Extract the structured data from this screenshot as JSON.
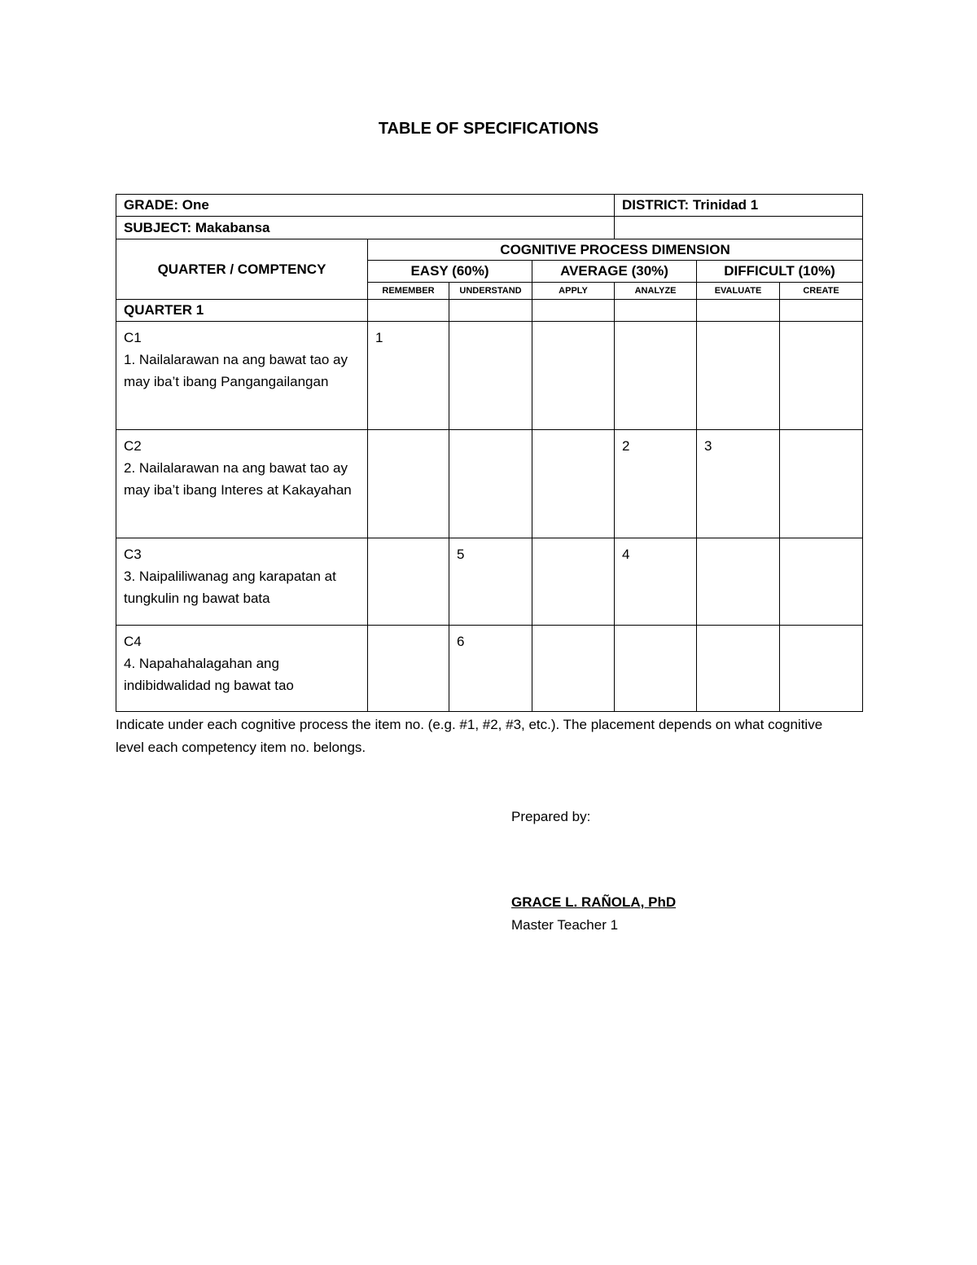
{
  "title": "TABLE OF SPECIFICATIONS",
  "header": {
    "grade": "GRADE: One",
    "district": "DISTRICT: Trinidad 1",
    "subject": "SUBJECT: Makabansa"
  },
  "table": {
    "competency_header": "QUARTER / COMPTENCY",
    "dimension_header": "COGNITIVE PROCESS DIMENSION",
    "groups": [
      "EASY (60%)",
      "AVERAGE (30%)",
      "DIFFICULT (10%)"
    ],
    "levels": [
      "Remember",
      "Understand",
      "Apply",
      "Analyze",
      "Evaluate",
      "Create"
    ],
    "quarter": "QUARTER 1",
    "rows": [
      {
        "code": "C1",
        "text": "1. Nailalarawan na ang bawat tao ay may iba’t ibang Pangangailangan",
        "cells": [
          "1",
          "",
          "",
          "",
          "",
          ""
        ]
      },
      {
        "code": "C2",
        "text": "2. Nailalarawan na ang bawat tao ay may iba’t ibang Interes at Kakayahan",
        "cells": [
          "",
          "",
          "",
          "2",
          "3",
          ""
        ]
      },
      {
        "code": "C3",
        "text": "3. Naipaliliwanag ang karapatan at tungkulin ng bawat bata",
        "cells": [
          "",
          "5",
          "",
          "4",
          "",
          ""
        ]
      },
      {
        "code": "C4",
        "text": "4. Napahahalagahan ang indibidwalidad ng bawat tao",
        "cells": [
          "",
          "6",
          "",
          "",
          "",
          ""
        ]
      }
    ]
  },
  "note": "Indicate under each cognitive process the item no. (e.g. #1, #2, #3, etc.). The placement depends on what cognitive level each competency item no. belongs.",
  "footer": {
    "prepared_by": "Prepared by:",
    "name": "GRACE L. RAÑOLA, PhD",
    "role": "Master Teacher 1"
  }
}
